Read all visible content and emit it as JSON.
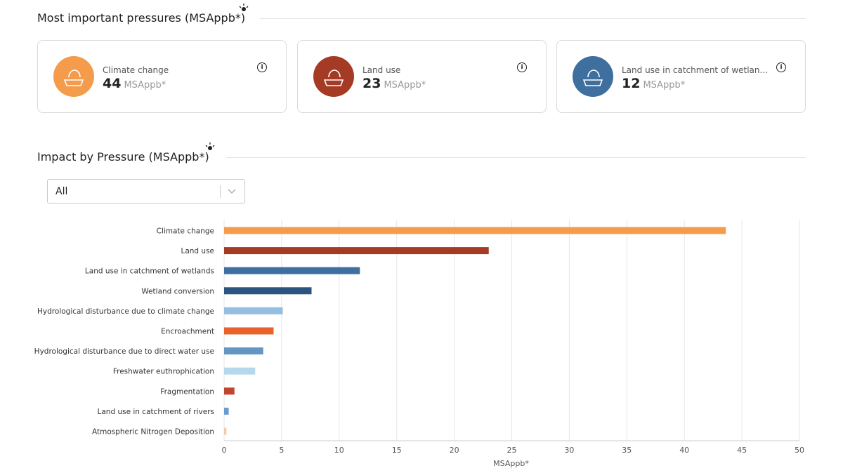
{
  "pressures_section": {
    "title": "Most important pressures (MSAppb*)",
    "cards": [
      {
        "label": "Climate change",
        "value": "44",
        "unit": "MSAppb*"
      },
      {
        "label": "Land use",
        "value": "23",
        "unit": "MSAppb*"
      },
      {
        "label": "Land use in catchment of wetlan...",
        "value": "12",
        "unit": "MSAppb*"
      }
    ]
  },
  "impact_section": {
    "title": "Impact by Pressure (MSAppb*)",
    "filter": "All"
  },
  "chart_data": {
    "type": "bar",
    "orientation": "horizontal",
    "categories": [
      "Climate change",
      "Land use",
      "Land use in catchment of wetlands",
      "Wetland conversion",
      "Hydrological disturbance due to climate change",
      "Encroachment",
      "Hydrological disturbance due to direct water use",
      "Freshwater euthrophication",
      "Fragmentation",
      "Land use in catchment of rivers",
      "Atmospheric Nitrogen Deposition"
    ],
    "values": [
      43.6,
      23.0,
      11.8,
      7.6,
      5.1,
      4.3,
      3.4,
      2.7,
      0.9,
      0.4,
      0.2
    ],
    "colors": [
      "#f59b4c",
      "#a63b25",
      "#3f6f9f",
      "#2b5580",
      "#94bfe0",
      "#e8622c",
      "#6496c4",
      "#b5d8ec",
      "#c0462e",
      "#6b9bd0",
      "#f6c8a8"
    ],
    "xlim": [
      0,
      50
    ],
    "xticks": [
      0,
      5,
      10,
      15,
      20,
      25,
      30,
      35,
      40,
      45,
      50
    ],
    "xlabel": "MSAppb*",
    "grid": true
  }
}
